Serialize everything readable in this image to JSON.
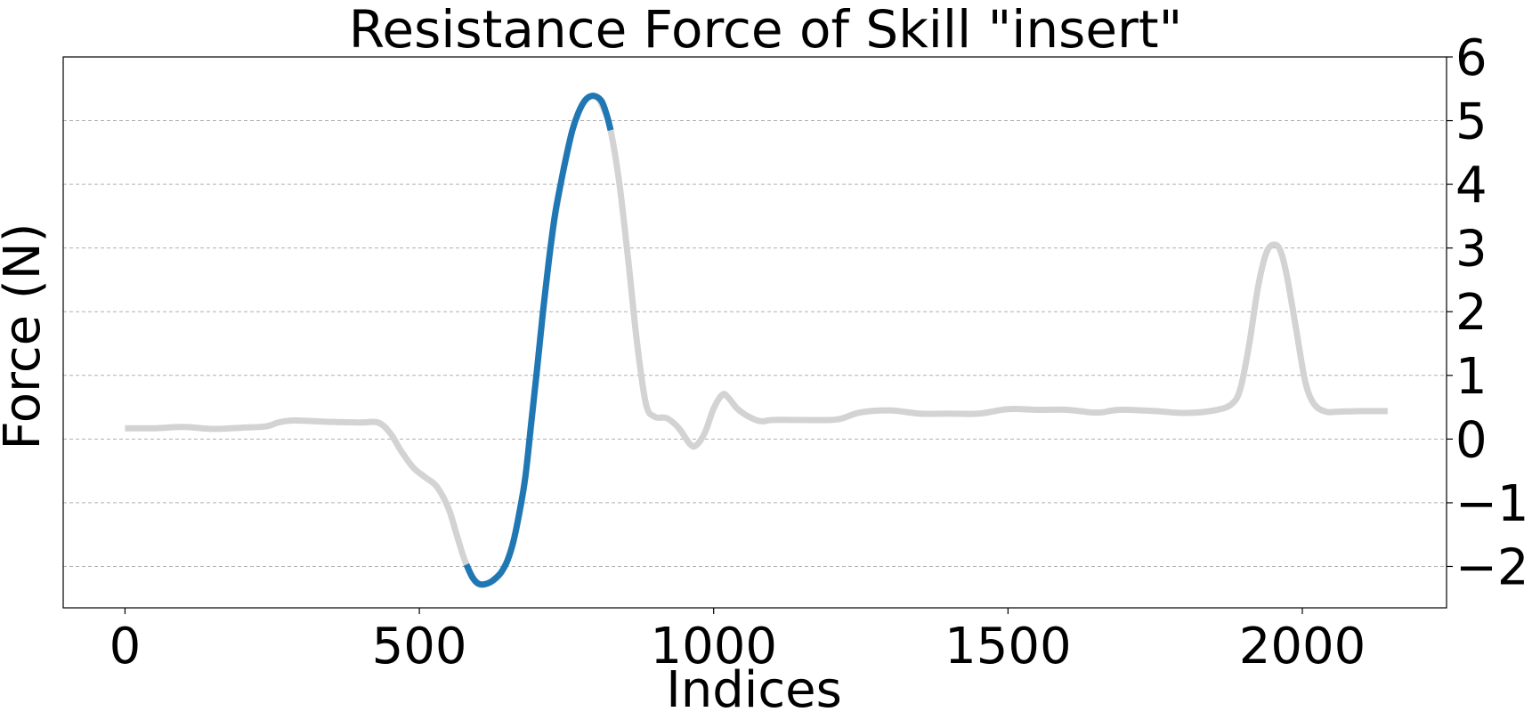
{
  "colors": {
    "highlight": "#1f77b4",
    "base": "#d3d3d3",
    "grid": "#b0b0b0",
    "axis": "#000000"
  },
  "chart_data": {
    "type": "line",
    "title": "Resistance Force of Skill \"insert\"",
    "xlabel": "Indices",
    "ylabel": "Force (N)",
    "xlim": [
      -105,
      2245
    ],
    "ylim": [
      -2.65,
      6.0
    ],
    "y_axis_side": "right",
    "grid": {
      "y": true,
      "x": false,
      "style": "dashed"
    },
    "x_ticks": [
      {
        "value": 0,
        "label": "0"
      },
      {
        "value": 500,
        "label": "500"
      },
      {
        "value": 1000,
        "label": "1000"
      },
      {
        "value": 1500,
        "label": "1500"
      },
      {
        "value": 2000,
        "label": "2000"
      }
    ],
    "y_ticks": [
      {
        "value": -2,
        "label": "−2"
      },
      {
        "value": -1,
        "label": "−1"
      },
      {
        "value": 0,
        "label": "0"
      },
      {
        "value": 1,
        "label": "1"
      },
      {
        "value": 2,
        "label": "2"
      },
      {
        "value": 3,
        "label": "3"
      },
      {
        "value": 4,
        "label": "4"
      },
      {
        "value": 5,
        "label": "5"
      },
      {
        "value": 6,
        "label": "6"
      }
    ],
    "series": [
      {
        "role": "full-signal",
        "color": "#d3d3d3",
        "x": [
          0,
          50,
          100,
          150,
          200,
          240,
          260,
          280,
          300,
          350,
          400,
          430,
          450,
          470,
          490,
          510,
          530,
          550,
          565,
          580,
          600,
          620,
          640,
          660,
          680,
          700,
          720,
          740,
          760,
          780,
          800,
          815,
          825,
          840,
          855,
          870,
          885,
          900,
          920,
          940,
          960,
          970,
          985,
          1000,
          1015,
          1025,
          1040,
          1060,
          1080,
          1100,
          1150,
          1200,
          1220,
          1250,
          1300,
          1350,
          1400,
          1450,
          1500,
          1550,
          1600,
          1640,
          1660,
          1690,
          1750,
          1800,
          1850,
          1880,
          1895,
          1910,
          1925,
          1940,
          1955,
          1965,
          1975,
          1990,
          2005,
          2020,
          2040,
          2060,
          2100,
          2145
        ],
        "y": [
          0.17,
          0.17,
          0.19,
          0.16,
          0.18,
          0.2,
          0.26,
          0.29,
          0.29,
          0.27,
          0.26,
          0.26,
          0.1,
          -0.2,
          -0.45,
          -0.6,
          -0.75,
          -1.1,
          -1.55,
          -1.97,
          -2.27,
          -2.25,
          -2.08,
          -1.6,
          -0.6,
          1.1,
          2.8,
          4.0,
          4.85,
          5.3,
          5.38,
          5.15,
          4.85,
          4.0,
          2.8,
          1.5,
          0.55,
          0.35,
          0.33,
          0.18,
          -0.08,
          -0.1,
          0.1,
          0.48,
          0.7,
          0.65,
          0.48,
          0.35,
          0.28,
          0.3,
          0.3,
          0.3,
          0.33,
          0.42,
          0.45,
          0.4,
          0.4,
          0.4,
          0.47,
          0.46,
          0.46,
          0.42,
          0.42,
          0.46,
          0.44,
          0.41,
          0.45,
          0.55,
          0.8,
          1.5,
          2.4,
          2.95,
          3.05,
          2.9,
          2.5,
          1.7,
          0.9,
          0.55,
          0.43,
          0.43,
          0.44,
          0.44
        ]
      },
      {
        "role": "highlighted-segment",
        "color": "#1f77b4",
        "x": [
          580,
          590,
          600,
          610,
          620,
          630,
          640,
          650,
          660,
          670,
          680,
          690,
          700,
          710,
          720,
          730,
          740,
          750,
          760,
          770,
          780,
          790,
          800,
          810,
          818,
          825
        ],
        "y": [
          -1.97,
          -2.17,
          -2.27,
          -2.28,
          -2.25,
          -2.18,
          -2.08,
          -1.9,
          -1.6,
          -1.15,
          -0.6,
          0.25,
          1.1,
          2.0,
          2.8,
          3.5,
          4.0,
          4.45,
          4.85,
          5.12,
          5.3,
          5.38,
          5.38,
          5.3,
          5.1,
          4.85
        ]
      }
    ]
  }
}
